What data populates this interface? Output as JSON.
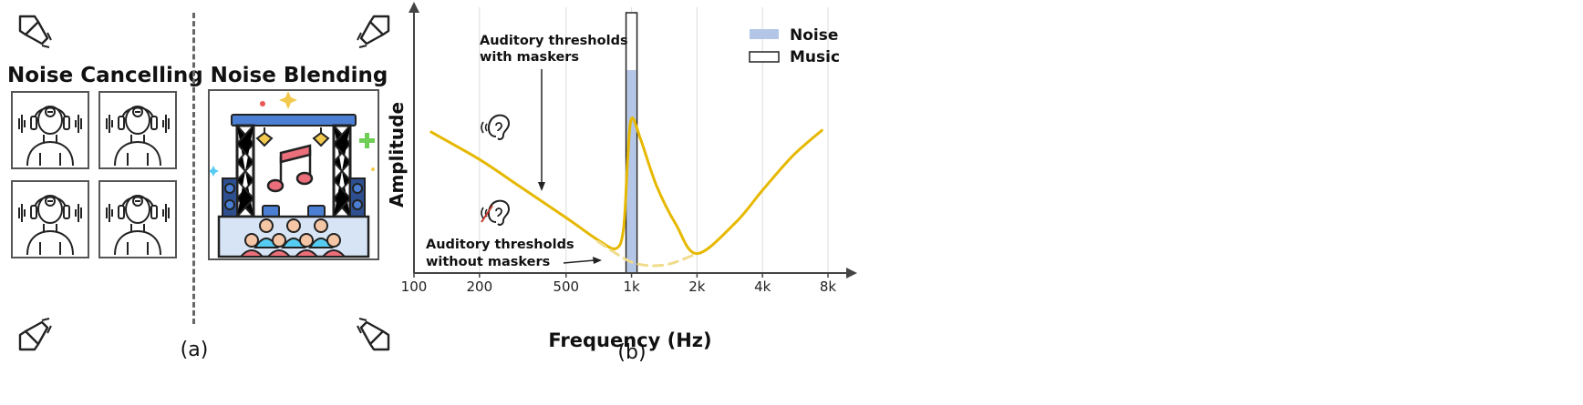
{
  "panel_a": {
    "label": "(a)",
    "left_title": "Noise Cancelling",
    "right_title": "Noise Blending",
    "icons": {
      "speaker": "speaker-icon",
      "headphone_person": "headphone-person-icon",
      "concert": "concert-stage-icon"
    }
  },
  "panel_b": {
    "label": "(b)",
    "annotations": {
      "with_maskers": [
        "Auditory thresholds",
        "with maskers"
      ],
      "without_maskers": [
        "Auditory thresholds",
        "without maskers"
      ]
    },
    "icons": {
      "ear_hearing": "ear-hearing-icon",
      "ear_muted": "ear-muted-icon"
    }
  },
  "chart_data": {
    "type": "line",
    "xlabel": "Frequency (Hz)",
    "ylabel": "Amplitude",
    "x_scale": "log",
    "x_ticks": [
      100,
      200,
      500,
      1000,
      2000,
      4000,
      8000
    ],
    "x_tick_labels": [
      "100",
      "200",
      "500",
      "1k",
      "2k",
      "4k",
      "8k"
    ],
    "grid": "vertical",
    "legend": {
      "placement": "top-right",
      "entries": [
        {
          "name": "Noise",
          "color": "#b4c6e7",
          "style": "filled"
        },
        {
          "name": "Music",
          "color": "#ffffff",
          "style": "outline"
        }
      ]
    },
    "bars": [
      {
        "series": "Music",
        "x_center": 1000,
        "value": 1.0
      },
      {
        "series": "Noise",
        "x_center": 1000,
        "value": 0.78
      }
    ],
    "series": [
      {
        "style": "solid",
        "color": "#e6b800",
        "x": [
          120,
          200,
          300,
          500,
          700,
          850,
          920,
          960,
          1000,
          1100,
          1300,
          1600,
          2000,
          3000,
          4000,
          5500,
          7500
        ],
        "y": [
          0.76,
          0.6,
          0.45,
          0.26,
          0.13,
          0.08,
          0.2,
          0.6,
          0.84,
          0.72,
          0.45,
          0.22,
          0.05,
          0.23,
          0.42,
          0.62,
          0.77
        ]
      },
      {
        "style": "dashed",
        "color": "#f0dc8c",
        "x": [
          700,
          850,
          1000,
          1200,
          1500,
          2000
        ],
        "y": [
          0.12,
          0.05,
          0.0,
          -0.02,
          -0.01,
          0.05
        ]
      }
    ],
    "colors": {
      "curve": "#e6b800",
      "noise": "#b4c6e7",
      "axis": "#444444"
    }
  }
}
